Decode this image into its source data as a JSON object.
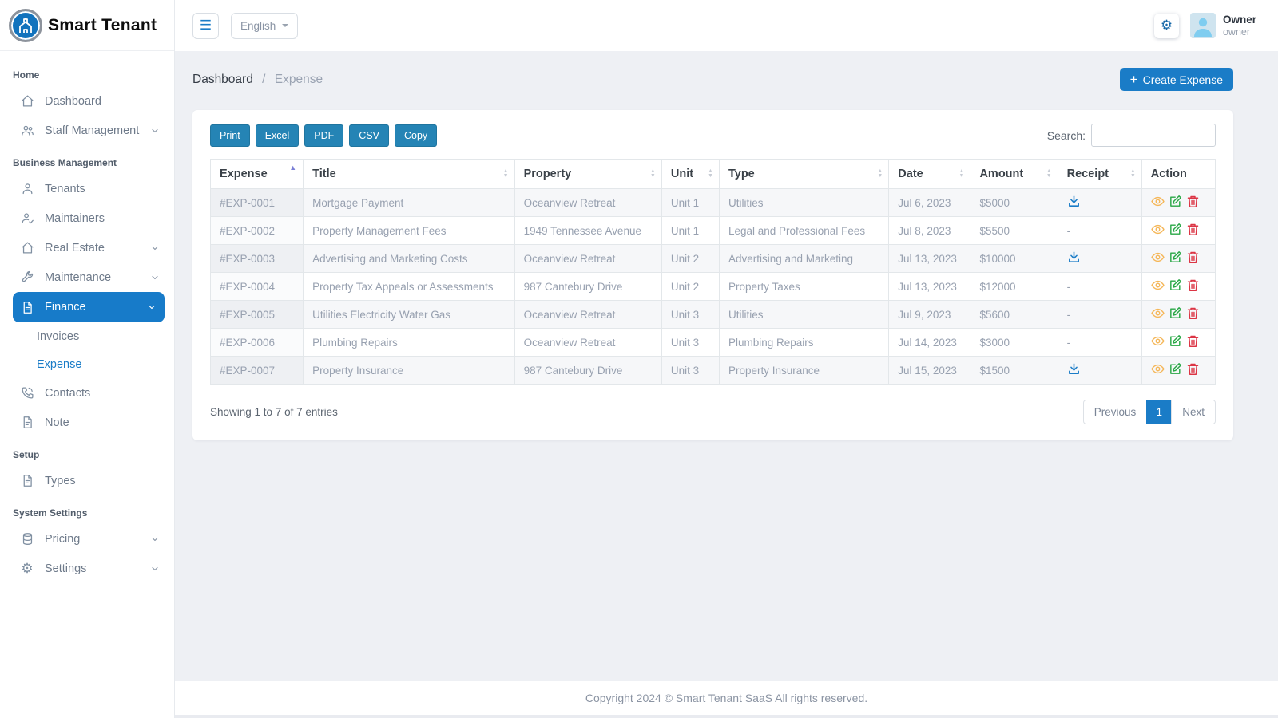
{
  "app": {
    "name": "Smart Tenant"
  },
  "topbar": {
    "language_selector": {
      "selected": "English"
    },
    "user": {
      "name": "Owner",
      "role": "owner"
    }
  },
  "sidebar": {
    "sections": [
      {
        "header": "Home"
      },
      {
        "header": "Business Management"
      },
      {
        "header": "Setup"
      },
      {
        "header": "System Settings"
      }
    ],
    "items": {
      "dashboard": "Dashboard",
      "staff_management": "Staff Management",
      "tenants": "Tenants",
      "maintainers": "Maintainers",
      "real_estate": "Real Estate",
      "maintenance": "Maintenance",
      "finance": "Finance",
      "invoices": "Invoices",
      "expense": "Expense",
      "contacts": "Contacts",
      "note": "Note",
      "types": "Types",
      "pricing": "Pricing",
      "settings": "Settings"
    }
  },
  "breadcrumb": {
    "parent": "Dashboard",
    "separator": "/",
    "current": "Expense"
  },
  "actions": {
    "create_expense": "Create Expense",
    "plus": "+"
  },
  "toolbar": {
    "export_buttons": [
      "Print",
      "Excel",
      "PDF",
      "CSV",
      "Copy"
    ],
    "search_label": "Search:",
    "search_value": ""
  },
  "table": {
    "columns": [
      "Expense",
      "Title",
      "Property",
      "Unit",
      "Type",
      "Date",
      "Amount",
      "Receipt",
      "Action"
    ],
    "sorted_column": "Expense",
    "sort_direction": "asc",
    "rows": [
      {
        "expense": "#EXP-0001",
        "title": "Mortgage Payment",
        "property": "Oceanview Retreat",
        "unit": "Unit 1",
        "type": "Utilities",
        "date": "Jul 6, 2023",
        "amount": "$5000",
        "receipt": "download"
      },
      {
        "expense": "#EXP-0002",
        "title": "Property Management Fees",
        "property": "1949 Tennessee Avenue",
        "unit": "Unit 1",
        "type": "Legal and Professional Fees",
        "date": "Jul 8, 2023",
        "amount": "$5500",
        "receipt": "-"
      },
      {
        "expense": "#EXP-0003",
        "title": "Advertising and Marketing Costs",
        "property": "Oceanview Retreat",
        "unit": "Unit 2",
        "type": "Advertising and Marketing",
        "date": "Jul 13, 2023",
        "amount": "$10000",
        "receipt": "download"
      },
      {
        "expense": "#EXP-0004",
        "title": "Property Tax Appeals or Assessments",
        "property": "987 Cantebury Drive",
        "unit": "Unit 2",
        "type": "Property Taxes",
        "date": "Jul 13, 2023",
        "amount": "$12000",
        "receipt": "-"
      },
      {
        "expense": "#EXP-0005",
        "title": "Utilities Electricity Water Gas",
        "property": "Oceanview Retreat",
        "unit": "Unit 3",
        "type": "Utilities",
        "date": "Jul 9, 2023",
        "amount": "$5600",
        "receipt": "-"
      },
      {
        "expense": "#EXP-0006",
        "title": "Plumbing Repairs",
        "property": "Oceanview Retreat",
        "unit": "Unit 3",
        "type": "Plumbing Repairs",
        "date": "Jul 14, 2023",
        "amount": "$3000",
        "receipt": "-"
      },
      {
        "expense": "#EXP-0007",
        "title": "Property Insurance",
        "property": "987 Cantebury Drive",
        "unit": "Unit 3",
        "type": "Property Insurance",
        "date": "Jul 15, 2023",
        "amount": "$1500",
        "receipt": "download"
      }
    ]
  },
  "pagination": {
    "info": "Showing 1 to 7 of 7 entries",
    "previous": "Previous",
    "current_page": "1",
    "next": "Next"
  },
  "footer": {
    "copyright": "Copyright 2024 © Smart Tenant SaaS All rights reserved."
  },
  "colors": {
    "accent": "#1a7cc7",
    "sidebar_active_bg": "#177bc9",
    "export_button": "#2584b5",
    "view_icon": "#f5b759",
    "edit_icon": "#28a745",
    "delete_icon": "#dc3545",
    "download_icon": "#1a7cc7",
    "active_sort_arrow": "#7a7fd6"
  }
}
